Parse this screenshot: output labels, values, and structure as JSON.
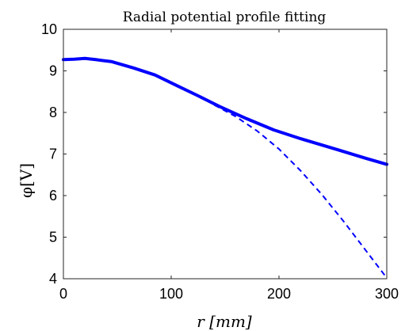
{
  "chart_data": {
    "type": "line",
    "title": "Radial potential profile fitting",
    "xlabel": "r [mm]",
    "ylabel": "φ[V]",
    "xlim": [
      0,
      300
    ],
    "ylim": [
      4,
      10
    ],
    "xticks": [
      "0",
      "100",
      "200",
      "300"
    ],
    "yticks": [
      "4",
      "5",
      "6",
      "7",
      "8",
      "9",
      "10"
    ],
    "grid": false,
    "legend": "none",
    "series": [
      {
        "style": "solid",
        "color": "#0000ff",
        "x": [
          0,
          10,
          20,
          30,
          45,
          65,
          85,
          105,
          125,
          145,
          170,
          195,
          220,
          255,
          280,
          300
        ],
        "y": [
          9.27,
          9.28,
          9.3,
          9.27,
          9.22,
          9.07,
          8.9,
          8.65,
          8.4,
          8.14,
          7.85,
          7.58,
          7.37,
          7.1,
          6.9,
          6.75
        ]
      },
      {
        "style": "dashed",
        "color": "#0000ff",
        "x": [
          140,
          160,
          180,
          200,
          220,
          240,
          260,
          280,
          300
        ],
        "y": [
          8.18,
          7.9,
          7.55,
          7.12,
          6.6,
          6.02,
          5.38,
          4.7,
          4.02
        ]
      }
    ]
  }
}
